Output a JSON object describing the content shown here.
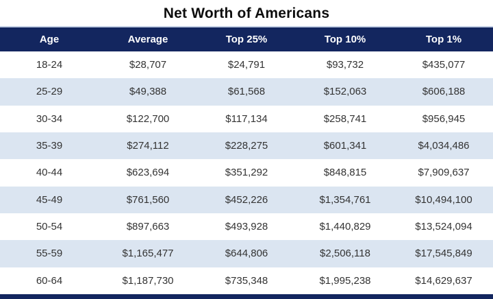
{
  "title": "Net Worth of Americans",
  "colors": {
    "header_bg": "#13265f",
    "header_top_line": "#c3d0e4",
    "header_text": "#ffffff",
    "row_bg": "#ffffff",
    "row_alt_bg": "#dbe5f1",
    "cell_text": "#333333",
    "footer_bar": "#13265f"
  },
  "table": {
    "columns": [
      "Age",
      "Average",
      "Top 25%",
      "Top 10%",
      "Top 1%"
    ],
    "rows": [
      [
        "18-24",
        "$28,707",
        "$24,791",
        "$93,732",
        "$435,077"
      ],
      [
        "25-29",
        "$49,388",
        "$61,568",
        "$152,063",
        "$606,188"
      ],
      [
        "30-34",
        "$122,700",
        "$117,134",
        "$258,741",
        "$956,945"
      ],
      [
        "35-39",
        "$274,112",
        "$228,275",
        "$601,341",
        "$4,034,486"
      ],
      [
        "40-44",
        "$623,694",
        "$351,292",
        "$848,815",
        "$7,909,637"
      ],
      [
        "45-49",
        "$761,560",
        "$452,226",
        "$1,354,761",
        "$10,494,100"
      ],
      [
        "50-54",
        "$897,663",
        "$493,928",
        "$1,440,829",
        "$13,524,094"
      ],
      [
        "55-59",
        "$1,165,477",
        "$644,806",
        "$2,506,118",
        "$17,545,849"
      ],
      [
        "60-64",
        "$1,187,730",
        "$735,348",
        "$1,995,238",
        "$14,629,637"
      ]
    ]
  },
  "chart_data": {
    "type": "table",
    "title": "Net Worth of Americans",
    "columns": [
      "Age",
      "Average",
      "Top 25%",
      "Top 10%",
      "Top 1%"
    ],
    "rows": [
      [
        "18-24",
        "$28,707",
        "$24,791",
        "$93,732",
        "$435,077"
      ],
      [
        "25-29",
        "$49,388",
        "$61,568",
        "$152,063",
        "$606,188"
      ],
      [
        "30-34",
        "$122,700",
        "$117,134",
        "$258,741",
        "$956,945"
      ],
      [
        "35-39",
        "$274,112",
        "$228,275",
        "$601,341",
        "$4,034,486"
      ],
      [
        "40-44",
        "$623,694",
        "$351,292",
        "$848,815",
        "$7,909,637"
      ],
      [
        "45-49",
        "$761,560",
        "$452,226",
        "$1,354,761",
        "$10,494,100"
      ],
      [
        "50-54",
        "$897,663",
        "$493,928",
        "$1,440,829",
        "$13,524,094"
      ],
      [
        "55-59",
        "$1,165,477",
        "$644,806",
        "$2,506,118",
        "$17,545,849"
      ],
      [
        "60-64",
        "$1,187,730",
        "$735,348",
        "$1,995,238",
        "$14,629,637"
      ]
    ],
    "layout": {
      "row_banding": "alternating white / light blue starting white",
      "header_style": "navy bar with white bold labels",
      "footer": "navy bar cropped at bottom edge"
    }
  }
}
